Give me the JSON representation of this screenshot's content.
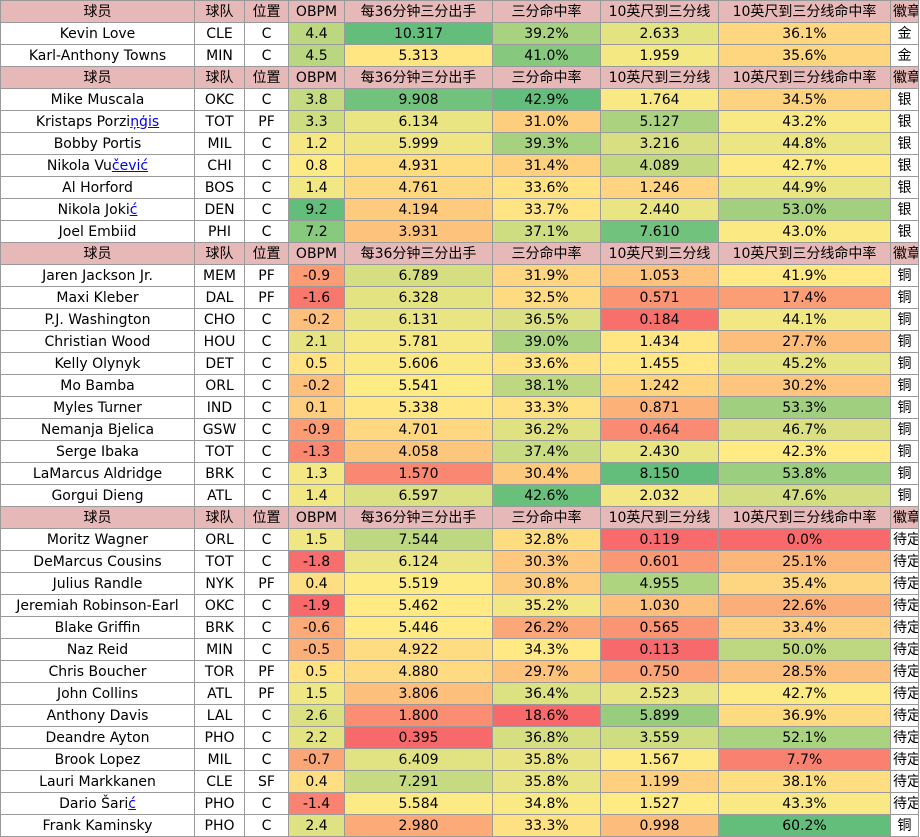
{
  "headers": [
    "球员",
    "球队",
    "位置",
    "OBPM",
    "每36分钟三分出手",
    "三分命中率",
    "10英尺到三分线",
    "10英尺到三分线命中率",
    "徽章"
  ],
  "colors": {
    "header": "#e6b8b7",
    "green_dark": "#63be7b",
    "green_mid": "#9bcf7f",
    "green_light": "#c5dc80",
    "yellow": "#fde884",
    "orange_light": "#fdc87d",
    "orange": "#fca277",
    "red_light": "#f98e72",
    "red": "#f8696b"
  },
  "sections": [
    {
      "rows": [
        {
          "name": "Kevin Love",
          "team": "CLE",
          "pos": "C",
          "obpm": "4.4",
          "fga3": "10.317",
          "pct3": "39.2%",
          "mid": "2.633",
          "midpct": "36.1%",
          "badge": "金"
        },
        {
          "name": "Karl-Anthony Towns",
          "team": "MIN",
          "pos": "C",
          "obpm": "4.5",
          "fga3": "5.313",
          "pct3": "41.0%",
          "mid": "1.959",
          "midpct": "35.6%",
          "badge": "金"
        }
      ]
    },
    {
      "rows": [
        {
          "name": "Mike Muscala",
          "team": "OKC",
          "pos": "C",
          "obpm": "3.8",
          "fga3": "9.908",
          "pct3": "42.9%",
          "mid": "1.764",
          "midpct": "34.5%",
          "badge": "银"
        },
        {
          "name_plain": "Kristaps Porzi",
          "name_link": "ņģis",
          "team": "TOT",
          "pos": "PF",
          "obpm": "3.3",
          "fga3": "6.134",
          "pct3": "31.0%",
          "mid": "5.127",
          "midpct": "43.2%",
          "badge": "银"
        },
        {
          "name": "Bobby Portis",
          "team": "MIL",
          "pos": "C",
          "obpm": "1.2",
          "fga3": "5.999",
          "pct3": "39.3%",
          "mid": "3.216",
          "midpct": "44.8%",
          "badge": "银"
        },
        {
          "name_plain": "Nikola Vu",
          "name_link": "čević",
          "team": "CHI",
          "pos": "C",
          "obpm": "0.8",
          "fga3": "4.931",
          "pct3": "31.4%",
          "mid": "4.089",
          "midpct": "42.7%",
          "badge": "银"
        },
        {
          "name": "Al Horford",
          "team": "BOS",
          "pos": "C",
          "obpm": "1.4",
          "fga3": "4.761",
          "pct3": "33.6%",
          "mid": "1.246",
          "midpct": "44.9%",
          "badge": "银"
        },
        {
          "name_plain": "Nikola Joki",
          "name_link": "ć",
          "team": "DEN",
          "pos": "C",
          "obpm": "9.2",
          "fga3": "4.194",
          "pct3": "33.7%",
          "mid": "2.440",
          "midpct": "53.0%",
          "badge": "银"
        },
        {
          "name": "Joel Embiid",
          "team": "PHI",
          "pos": "C",
          "obpm": "7.2",
          "fga3": "3.931",
          "pct3": "37.1%",
          "mid": "7.610",
          "midpct": "43.0%",
          "badge": "银"
        }
      ]
    },
    {
      "rows": [
        {
          "name": "Jaren Jackson Jr.",
          "team": "MEM",
          "pos": "PF",
          "obpm": "-0.9",
          "fga3": "6.789",
          "pct3": "31.9%",
          "mid": "1.053",
          "midpct": "41.9%",
          "badge": "铜"
        },
        {
          "name": "Maxi Kleber",
          "team": "DAL",
          "pos": "PF",
          "obpm": "-1.6",
          "fga3": "6.328",
          "pct3": "32.5%",
          "mid": "0.571",
          "midpct": "17.4%",
          "badge": "铜"
        },
        {
          "name": "P.J. Washington",
          "team": "CHO",
          "pos": "C",
          "obpm": "-0.2",
          "fga3": "6.131",
          "pct3": "36.5%",
          "mid": "0.184",
          "midpct": "44.1%",
          "badge": "铜"
        },
        {
          "name": "Christian Wood",
          "team": "HOU",
          "pos": "C",
          "obpm": "2.1",
          "fga3": "5.781",
          "pct3": "39.0%",
          "mid": "1.434",
          "midpct": "27.7%",
          "badge": "铜"
        },
        {
          "name": "Kelly Olynyk",
          "team": "DET",
          "pos": "C",
          "obpm": "0.5",
          "fga3": "5.606",
          "pct3": "33.6%",
          "mid": "1.455",
          "midpct": "45.2%",
          "badge": "铜"
        },
        {
          "name": "Mo Bamba",
          "team": "ORL",
          "pos": "C",
          "obpm": "-0.2",
          "fga3": "5.541",
          "pct3": "38.1%",
          "mid": "1.242",
          "midpct": "30.2%",
          "badge": "铜"
        },
        {
          "name": "Myles Turner",
          "team": "IND",
          "pos": "C",
          "obpm": "0.1",
          "fga3": "5.338",
          "pct3": "33.3%",
          "mid": "0.871",
          "midpct": "53.3%",
          "badge": "铜"
        },
        {
          "name": "Nemanja Bjelica",
          "team": "GSW",
          "pos": "C",
          "obpm": "-0.9",
          "fga3": "4.701",
          "pct3": "36.2%",
          "mid": "0.464",
          "midpct": "46.7%",
          "badge": "铜"
        },
        {
          "name": "Serge Ibaka",
          "team": "TOT",
          "pos": "C",
          "obpm": "-1.3",
          "fga3": "4.058",
          "pct3": "37.4%",
          "mid": "2.430",
          "midpct": "42.3%",
          "badge": "铜"
        },
        {
          "name": "LaMarcus Aldridge",
          "team": "BRK",
          "pos": "C",
          "obpm": "1.3",
          "fga3": "1.570",
          "pct3": "30.4%",
          "mid": "8.150",
          "midpct": "53.8%",
          "badge": "铜"
        },
        {
          "name": "Gorgui Dieng",
          "team": "ATL",
          "pos": "C",
          "obpm": "1.4",
          "fga3": "6.597",
          "pct3": "42.6%",
          "mid": "2.032",
          "midpct": "47.6%",
          "badge": "铜"
        }
      ]
    },
    {
      "rows": [
        {
          "name": "Moritz Wagner",
          "team": "ORL",
          "pos": "C",
          "obpm": "1.5",
          "fga3": "7.544",
          "pct3": "32.8%",
          "mid": "0.119",
          "midpct": "0.0%",
          "badge": "待定"
        },
        {
          "name": "DeMarcus Cousins",
          "team": "TOT",
          "pos": "C",
          "obpm": "-1.8",
          "fga3": "6.124",
          "pct3": "30.3%",
          "mid": "0.601",
          "midpct": "25.1%",
          "badge": "待定"
        },
        {
          "name": "Julius Randle",
          "team": "NYK",
          "pos": "PF",
          "obpm": "0.4",
          "fga3": "5.519",
          "pct3": "30.8%",
          "mid": "4.955",
          "midpct": "35.4%",
          "badge": "待定"
        },
        {
          "name": "Jeremiah Robinson-Earl",
          "team": "OKC",
          "pos": "C",
          "obpm": "-1.9",
          "fga3": "5.462",
          "pct3": "35.2%",
          "mid": "1.030",
          "midpct": "22.6%",
          "badge": "待定"
        },
        {
          "name": "Blake Griffin",
          "team": "BRK",
          "pos": "C",
          "obpm": "-0.6",
          "fga3": "5.446",
          "pct3": "26.2%",
          "mid": "0.565",
          "midpct": "33.4%",
          "badge": "待定"
        },
        {
          "name": "Naz Reid",
          "team": "MIN",
          "pos": "C",
          "obpm": "-0.5",
          "fga3": "4.922",
          "pct3": "34.3%",
          "mid": "0.113",
          "midpct": "50.0%",
          "badge": "待定"
        },
        {
          "name": "Chris Boucher",
          "team": "TOR",
          "pos": "PF",
          "obpm": "0.5",
          "fga3": "4.880",
          "pct3": "29.7%",
          "mid": "0.750",
          "midpct": "28.5%",
          "badge": "待定"
        },
        {
          "name": "John Collins",
          "team": "ATL",
          "pos": "PF",
          "obpm": "1.5",
          "fga3": "3.806",
          "pct3": "36.4%",
          "mid": "2.523",
          "midpct": "42.7%",
          "badge": "待定"
        },
        {
          "name": "Anthony Davis",
          "team": "LAL",
          "pos": "C",
          "obpm": "2.6",
          "fga3": "1.800",
          "pct3": "18.6%",
          "mid": "5.899",
          "midpct": "36.9%",
          "badge": "待定"
        },
        {
          "name": "Deandre Ayton",
          "team": "PHO",
          "pos": "C",
          "obpm": "2.2",
          "fga3": "0.395",
          "pct3": "36.8%",
          "mid": "3.559",
          "midpct": "52.1%",
          "badge": "待定"
        },
        {
          "name": "Brook Lopez",
          "team": "MIL",
          "pos": "C",
          "obpm": "-0.7",
          "fga3": "6.409",
          "pct3": "35.8%",
          "mid": "1.567",
          "midpct": "7.7%",
          "badge": "待定"
        },
        {
          "name": "Lauri Markkanen",
          "team": "CLE",
          "pos": "SF",
          "obpm": "0.4",
          "fga3": "7.291",
          "pct3": "35.8%",
          "mid": "1.199",
          "midpct": "38.1%",
          "badge": "待定"
        },
        {
          "name_plain": "Dario Šari",
          "name_link": "ć",
          "team": "PHO",
          "pos": "C",
          "obpm": "-1.4",
          "fga3": "5.584",
          "pct3": "34.8%",
          "mid": "1.527",
          "midpct": "43.3%",
          "badge": "待定"
        },
        {
          "name": "Frank Kaminsky",
          "team": "PHO",
          "pos": "C",
          "obpm": "2.4",
          "fga3": "2.980",
          "pct3": "33.3%",
          "mid": "0.998",
          "midpct": "60.2%",
          "badge": "铜"
        }
      ]
    }
  ]
}
